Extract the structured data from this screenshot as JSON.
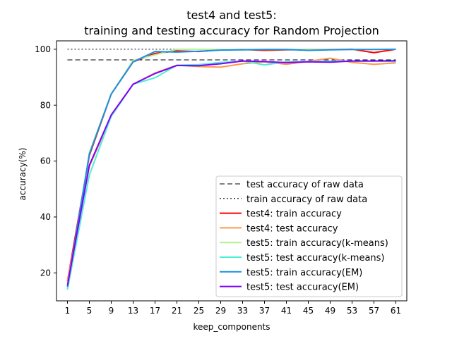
{
  "chart_data": {
    "type": "line",
    "title_line1": "test4 and test5:",
    "title_line2": "training and testing accuracy for Random Projection",
    "xlabel": "keep_components",
    "ylabel": "accuracy(%)",
    "x": [
      1,
      5,
      9,
      13,
      17,
      21,
      25,
      29,
      33,
      37,
      41,
      45,
      49,
      53,
      57,
      61
    ],
    "xlim": [
      -1,
      63
    ],
    "ylim": [
      10,
      103
    ],
    "yticks": [
      20,
      40,
      60,
      80,
      100
    ],
    "grid": false,
    "legend_position": "lower right",
    "reference_lines": [
      {
        "name": "test accuracy of raw data",
        "y": 96.2,
        "style": "dashed",
        "color": "#000000"
      },
      {
        "name": "train accuracy of raw data",
        "y": 100,
        "style": "dotted",
        "color": "#000000"
      }
    ],
    "series": [
      {
        "name": "test4: train accuracy",
        "color": "#ff0000",
        "values": [
          17,
          62,
          84,
          95.5,
          98.5,
          99.4,
          99.2,
          99.8,
          99.9,
          99.6,
          99.8,
          99.9,
          99.9,
          100,
          98.8,
          100
        ]
      },
      {
        "name": "test4: test accuracy",
        "color": "#ff964f",
        "values": [
          17,
          58,
          76,
          87.5,
          91.5,
          94.3,
          93.8,
          93.6,
          94.8,
          95.5,
          94.6,
          95.7,
          96.8,
          95.3,
          94.6,
          95.1
        ]
      },
      {
        "name": "test5: train accuracy(k-means)",
        "color": "#b2f096",
        "values": [
          14,
          63,
          84,
          96,
          98,
          100,
          100,
          99.9,
          99.9,
          99.9,
          99.9,
          99.9,
          99.9,
          99.9,
          100,
          100
        ]
      },
      {
        "name": "test5: test accuracy(k-means)",
        "color": "#4bf0d2",
        "values": [
          14,
          55,
          76,
          87.5,
          89.8,
          94.3,
          94.5,
          95.3,
          95.8,
          94.4,
          95.5,
          95.6,
          95.8,
          95.7,
          95.8,
          95.6
        ]
      },
      {
        "name": "test5: train accuracy(EM)",
        "color": "#1e90e0",
        "values": [
          15,
          62.5,
          84,
          95.5,
          99.2,
          99.0,
          99.3,
          99.7,
          99.8,
          99.9,
          99.9,
          99.6,
          99.8,
          99.9,
          99.9,
          100
        ]
      },
      {
        "name": "test5: test accuracy(EM)",
        "color": "#7f00ff",
        "values": [
          15.5,
          58.5,
          76.5,
          87.5,
          91.3,
          94.2,
          94.1,
          94.8,
          95.8,
          95.6,
          95.2,
          95.5,
          95.4,
          95.8,
          95.8,
          95.9
        ]
      }
    ]
  }
}
